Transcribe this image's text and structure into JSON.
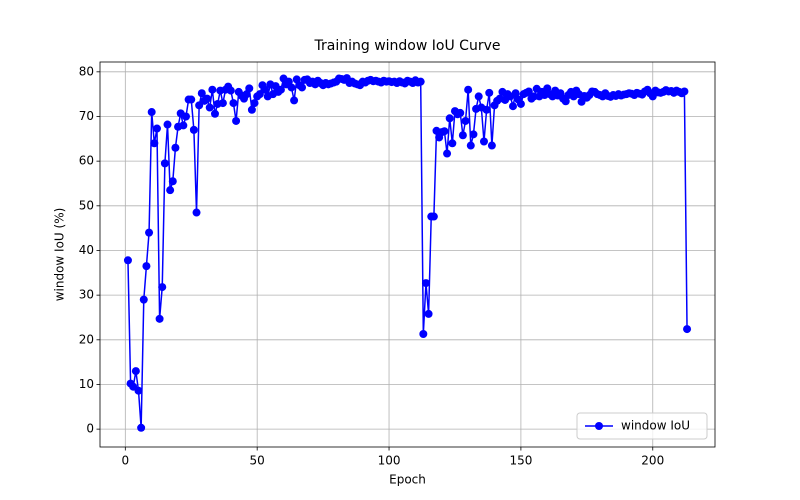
{
  "chart_data": {
    "type": "line",
    "title": "Training window IoU Curve",
    "x_label": "Epoch",
    "y_label": "window IoU (%)",
    "x": [
      1,
      2,
      3,
      4,
      5,
      6,
      7,
      8,
      9,
      10,
      11,
      12,
      13,
      14,
      15,
      16,
      17,
      18,
      19,
      20,
      21,
      22,
      23,
      24,
      25,
      26,
      27,
      28,
      29,
      30,
      31,
      32,
      33,
      34,
      35,
      36,
      37,
      38,
      39,
      40,
      41,
      42,
      43,
      44,
      45,
      46,
      47,
      48,
      49,
      50,
      51,
      52,
      53,
      54,
      55,
      56,
      57,
      58,
      59,
      60,
      61,
      62,
      63,
      64,
      65,
      66,
      67,
      68,
      69,
      70,
      71,
      72,
      73,
      74,
      75,
      76,
      77,
      78,
      79,
      80,
      81,
      82,
      83,
      84,
      85,
      86,
      87,
      88,
      89,
      90,
      91,
      92,
      93,
      94,
      95,
      96,
      97,
      98,
      99,
      100,
      101,
      102,
      103,
      104,
      105,
      106,
      107,
      108,
      109,
      110,
      111,
      112,
      113,
      114,
      115,
      116,
      117,
      118,
      119,
      120,
      121,
      122,
      123,
      124,
      125,
      126,
      127,
      128,
      129,
      130,
      131,
      132,
      133,
      134,
      135,
      136,
      137,
      138,
      139,
      140,
      141,
      142,
      143,
      144,
      145,
      146,
      147,
      148,
      149,
      150,
      151,
      152,
      153,
      154,
      155,
      156,
      157,
      158,
      159,
      160,
      161,
      162,
      163,
      164,
      165,
      166,
      167,
      168,
      169,
      170,
      171,
      172,
      173,
      174,
      175,
      176,
      177,
      178,
      179,
      180,
      181,
      182,
      183,
      184,
      185,
      186,
      187,
      188,
      189,
      190,
      191,
      192,
      193,
      194,
      195,
      196,
      197,
      198,
      199,
      200,
      201,
      202,
      203,
      204,
      205,
      206,
      207,
      208,
      209,
      210,
      211,
      212,
      213
    ],
    "series": [
      {
        "name": "window IoU",
        "color": "#0000ff",
        "values": [
          37.8,
          10.2,
          9.5,
          13,
          8.6,
          0.3,
          29,
          36.5,
          44,
          71,
          64,
          67.3,
          24.7,
          31.8,
          59.5,
          68.2,
          53.5,
          55.5,
          63,
          67.7,
          70.7,
          68,
          70,
          73.8,
          73.8,
          67,
          48.5,
          72.5,
          75.2,
          73.5,
          74,
          72,
          76,
          70.6,
          72.8,
          75.8,
          73,
          76,
          76.7,
          75.8,
          73,
          69,
          75.5,
          74.7,
          74,
          75,
          76.3,
          71.5,
          73,
          74.5,
          75,
          77,
          76,
          74.5,
          77.2,
          75,
          76.8,
          75.5,
          76,
          78.5,
          77.2,
          77.8,
          76.5,
          73.6,
          78.3,
          77,
          76.5,
          78.2,
          78.3,
          77.5,
          77.8,
          77.2,
          78,
          77.5,
          77,
          77.5,
          77.2,
          77.4,
          77.6,
          77.8,
          78.5,
          78.4,
          78.2,
          78.6,
          77.5,
          77.8,
          77.4,
          77.2,
          77,
          77.8,
          77.6,
          78,
          78.2,
          77.9,
          78,
          77.8,
          77.6,
          78,
          77.8,
          77.9,
          77.7,
          77.8,
          77.5,
          77.9,
          77.6,
          77.4,
          78,
          77.8,
          77.5,
          78.1,
          77.6,
          77.8,
          21.3,
          32.7,
          25.8,
          47.6,
          47.6,
          66.8,
          65.3,
          66.5,
          66.7,
          61.7,
          69.6,
          64,
          71.2,
          70.5,
          70.8,
          65.8,
          69,
          76,
          63.5,
          66,
          71.7,
          74.5,
          72,
          64.4,
          71.5,
          75.3,
          63.5,
          72.5,
          73.5,
          74,
          75.5,
          73.7,
          75,
          74.5,
          72.3,
          75.2,
          73.8,
          72.8,
          75,
          75.3,
          75.6,
          74,
          74.5,
          76.2,
          74.5,
          75.5,
          74.8,
          76.3,
          75,
          74.5,
          75.8,
          74.7,
          75.2,
          74,
          73.4,
          74.8,
          75.5,
          74.5,
          75.8,
          75,
          73.3,
          74.6,
          74.2,
          74.8,
          75.6,
          75.5,
          75,
          74.8,
          74.5,
          75.2,
          74.6,
          74.4,
          74.8,
          74.6,
          75,
          74.7,
          74.9,
          75,
          75.2,
          75.1,
          74.8,
          75.3,
          75.1,
          74.9,
          75.6,
          76,
          75.2,
          74.5,
          75.8,
          75.4,
          75.3,
          75.5,
          75.9,
          75.6,
          75.7,
          75.3,
          75.8,
          75.5,
          75.2,
          75.6,
          22.4
        ]
      }
    ],
    "xlim": [
      -9.6,
      223.6
    ],
    "ylim": [
      -4,
      82.2
    ],
    "xticks": [
      0,
      50,
      100,
      150,
      200
    ],
    "yticks": [
      0,
      10,
      20,
      30,
      40,
      50,
      60,
      70,
      80
    ],
    "grid": true,
    "legend": "lower right"
  }
}
